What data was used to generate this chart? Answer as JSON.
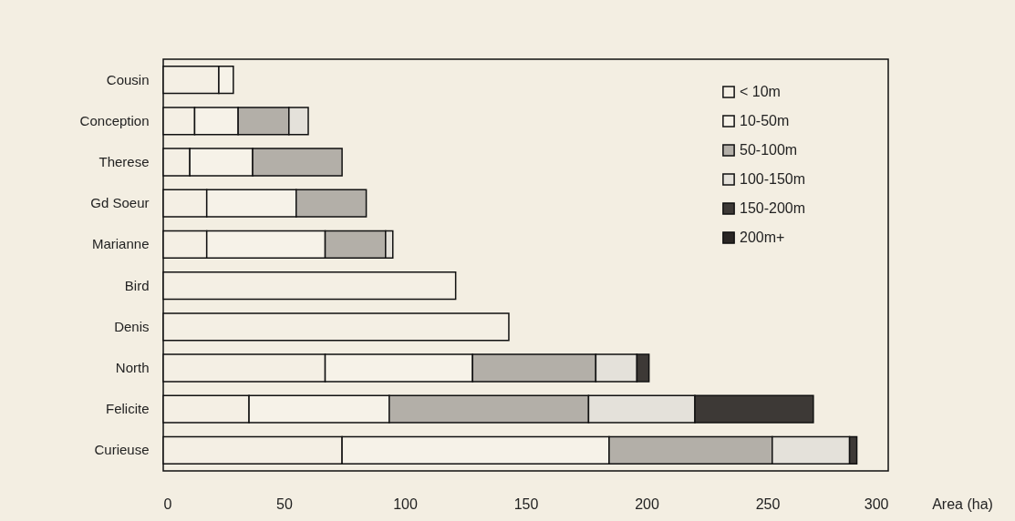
{
  "chart_data": {
    "type": "bar",
    "orientation": "horizontal",
    "stacked": true,
    "xlabel": "Area (ha)",
    "categories": [
      "Cousin",
      "Conception",
      "Therese",
      "Gd Soeur",
      "Marianne",
      "Bird",
      "Denis",
      "North",
      "Felicite",
      "Curieuse"
    ],
    "series": [
      {
        "name": "< 10m",
        "color": "#f4efe4",
        "values": [
          23,
          13,
          11,
          18,
          18,
          121,
          143,
          67,
          35.5,
          74
        ]
      },
      {
        "name": "10-50m",
        "color": "#f6f2e8",
        "values": [
          6,
          18,
          26,
          37,
          49,
          null,
          null,
          61,
          58,
          110.5
        ]
      },
      {
        "name": "50-100m",
        "color": "#b3afa8",
        "values": [
          null,
          21,
          37,
          29,
          25,
          null,
          null,
          51,
          82.5,
          67.5
        ]
      },
      {
        "name": "100-150m",
        "color": "#e4e1da",
        "values": [
          null,
          8,
          null,
          null,
          3,
          null,
          null,
          17,
          44,
          32
        ]
      },
      {
        "name": "150-200m",
        "color": "#3d3936",
        "values": [
          null,
          null,
          null,
          null,
          null,
          null,
          null,
          5,
          49,
          3
        ]
      },
      {
        "name": "200m+",
        "color": "#2a2624",
        "values": [
          null,
          null,
          null,
          null,
          null,
          null,
          null,
          null,
          null,
          null
        ]
      }
    ],
    "xlim": [
      0,
      300
    ],
    "xticks": [
      0,
      50,
      100,
      150,
      200,
      250,
      300
    ],
    "grid": false,
    "legend": "top right"
  }
}
